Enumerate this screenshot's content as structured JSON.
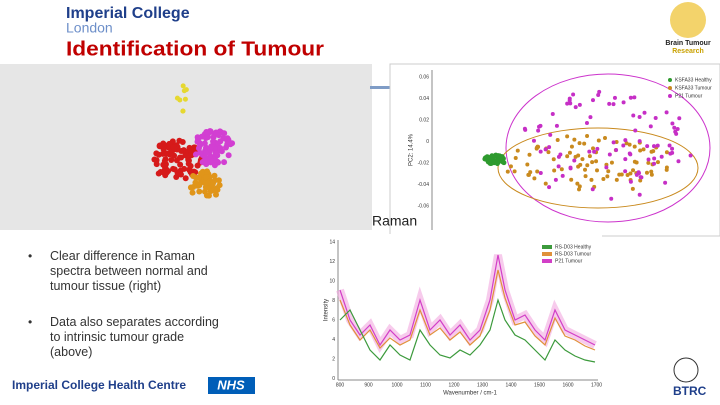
{
  "header": {
    "institution": "Imperial College",
    "location": "London",
    "title": "Identification of Tumour"
  },
  "logo": {
    "line1": "Brain Tumour",
    "line2": "Research"
  },
  "scatter": {
    "y_label": "PC2: 14.4%",
    "legend": [
      "KSFA33 Healthy",
      "KSFA33 Tumour",
      "P21 Tumour"
    ],
    "yticks": [
      "0.06",
      "0.04",
      "0.02",
      "0",
      "-0.02",
      "-0.04",
      "-0.06"
    ]
  },
  "caption": "Raman",
  "spectrum": {
    "y_label": "Intensity",
    "x_label": "Wavenumber / cm-1",
    "legend": [
      "RS-D03 Healthy",
      "RS-D03 Tumour",
      "P21 Tumour"
    ],
    "yticks": [
      "14",
      "12",
      "10",
      "8",
      "6",
      "4",
      "2",
      "0"
    ],
    "xticks": [
      "800",
      "900",
      "1000",
      "1100",
      "1200",
      "1300",
      "1400",
      "1500",
      "1600",
      "1700"
    ]
  },
  "bullets": [
    "Clear difference in Raman spectra between normal and tumour tissue (right)",
    "Data also separates according to intrinsic tumour grade (above)"
  ],
  "footer": {
    "name": "Imperial College Health Centre",
    "badge": "NHS"
  },
  "corner_logo": "BTRC"
}
